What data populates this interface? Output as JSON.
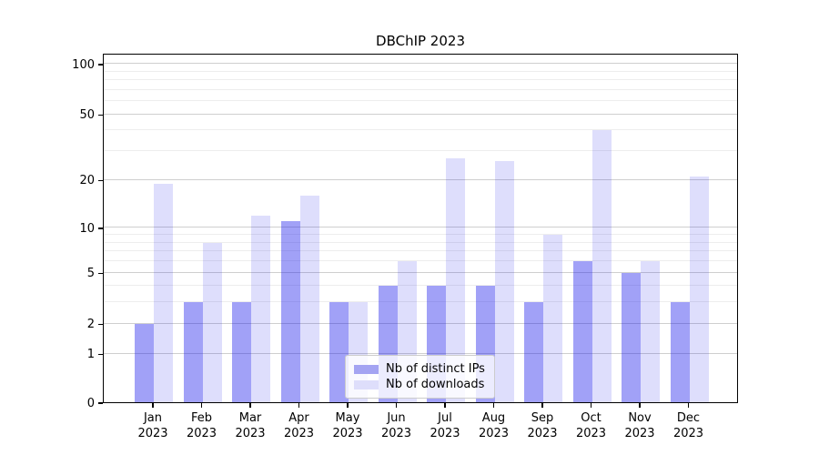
{
  "figure": {
    "title": "DBChIP 2023"
  },
  "chart_data": {
    "type": "bar",
    "title": "DBChIP 2023",
    "categories": [
      "Jan",
      "Feb",
      "Mar",
      "Apr",
      "May",
      "Jun",
      "Jul",
      "Aug",
      "Sep",
      "Oct",
      "Nov",
      "Dec"
    ],
    "x_year_label": "2023",
    "series": [
      {
        "name": "Nb of distinct IPs",
        "color": "#a4a4f2",
        "fill": "rgba(20,20,235,0.40)",
        "values": [
          2,
          3,
          3,
          11,
          3,
          4,
          4,
          4,
          3,
          6,
          5,
          3
        ]
      },
      {
        "name": "Nb of downloads",
        "color": "#dedefb",
        "fill": "rgba(20,20,235,0.14)",
        "values": [
          19,
          8,
          12,
          16,
          3,
          6,
          27,
          26,
          9,
          40,
          6,
          21
        ]
      }
    ],
    "yscale": "log1p",
    "ylim": [
      0,
      115
    ],
    "y_major_ticks": [
      0,
      1,
      2,
      5,
      10,
      20,
      50,
      100
    ],
    "y_minor_ticks": [
      3,
      4,
      6,
      7,
      8,
      9,
      30,
      40,
      60,
      70,
      80,
      90
    ],
    "grid": true,
    "legend_position": "lower-center",
    "grid_major_color": "#cfcfcf",
    "grid_minor_color": "#ededed",
    "axis_color": "#000000"
  }
}
